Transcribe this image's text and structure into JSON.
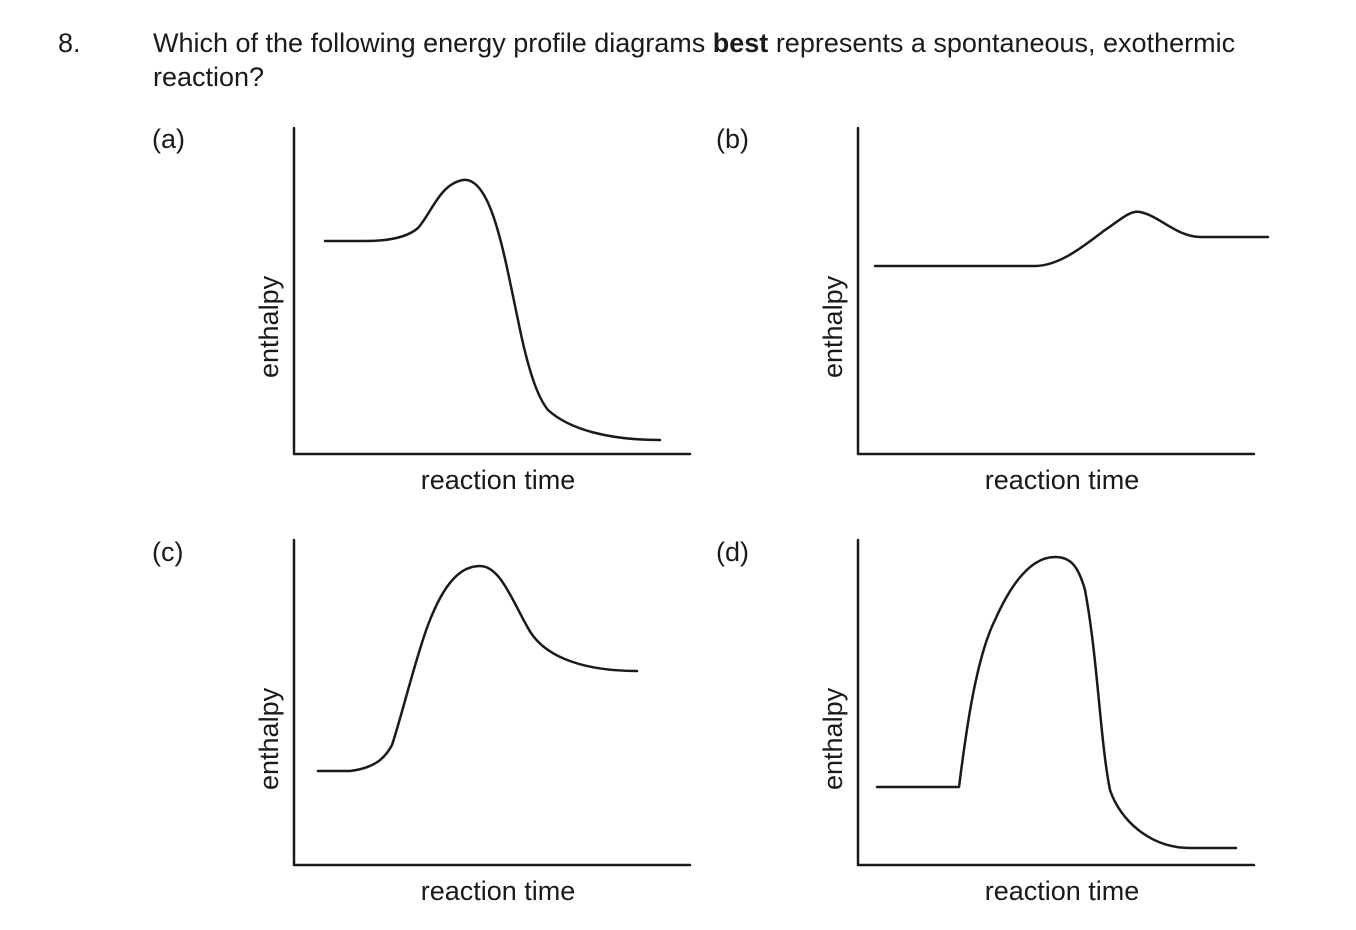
{
  "question": {
    "number": "8.",
    "text_before": "Which of the following energy profile diagrams ",
    "text_bold": "best",
    "text_after": " represents a spontaneous, exothermic reaction?"
  },
  "options": [
    {
      "letter": "(a)",
      "xlabel": "reaction time",
      "ylabel": "enthalpy"
    },
    {
      "letter": "(b)",
      "xlabel": "reaction time",
      "ylabel": "enthalpy"
    },
    {
      "letter": "(c)",
      "xlabel": "reaction time",
      "ylabel": "enthalpy"
    },
    {
      "letter": "(d)",
      "xlabel": "reaction time",
      "ylabel": "enthalpy"
    }
  ]
}
